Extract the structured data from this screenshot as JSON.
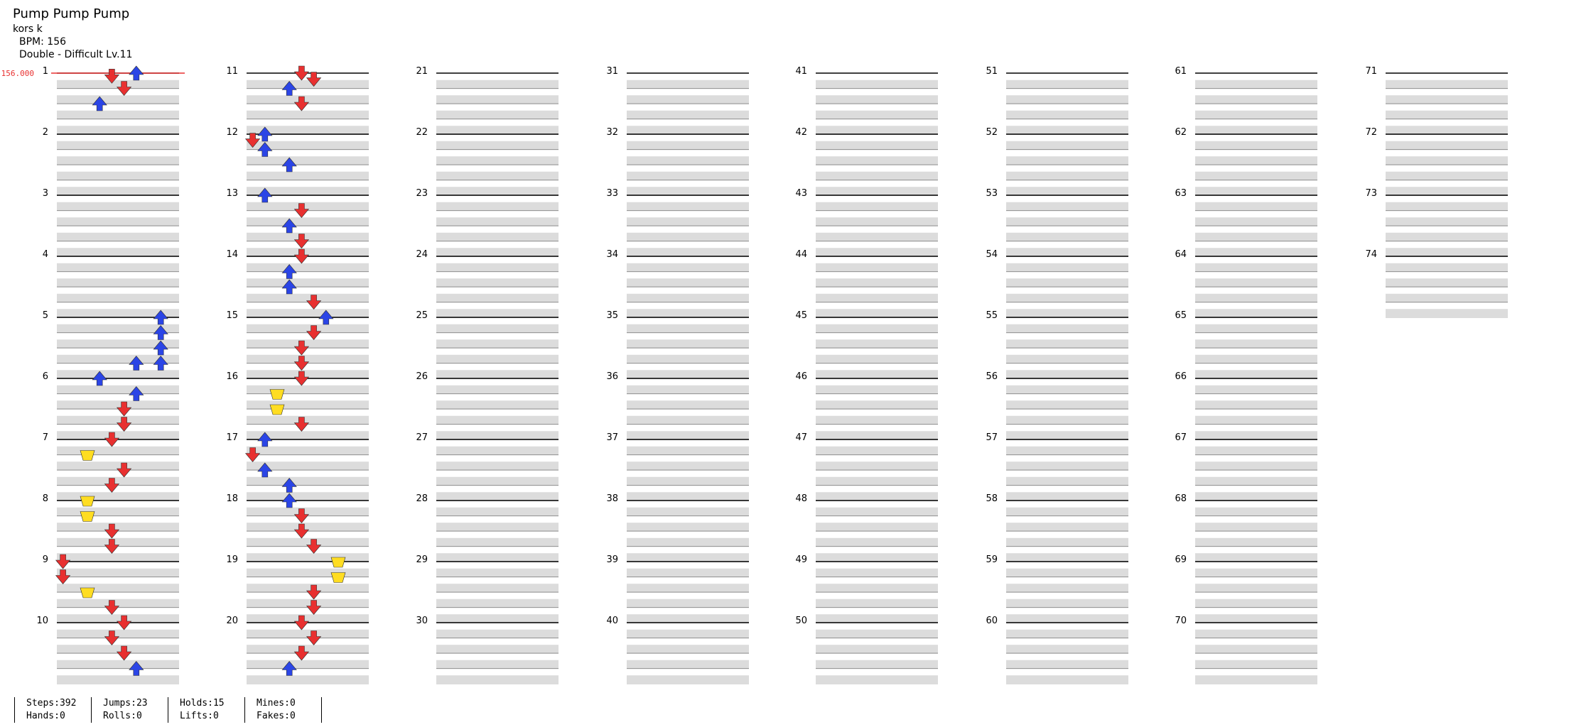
{
  "header": {
    "title": "Pump Pump Pump",
    "artist": "kors k",
    "bpm": "BPM: 156",
    "difficulty": "Double - Difficult Lv.11"
  },
  "bpm_marker": "156.000",
  "chart_data": {
    "type": "table",
    "measures_shown": 74,
    "measures_per_column": 10,
    "lanes": 10,
    "lane_order": [
      "down-left",
      "up-left",
      "center",
      "up-right",
      "down-right",
      "down-left",
      "up-left",
      "center",
      "up-right",
      "down-right"
    ],
    "colors": {
      "down-left": "#e83030",
      "up-left": "#e83030",
      "center": "#ffdd22",
      "up-right": "#e83030",
      "down-right": "#e83030",
      "blue": "#2b45e6",
      "hold": "#66dd66",
      "mine": "#aa33ff"
    },
    "measure_labels": [
      "1",
      "2",
      "3",
      "4",
      "5",
      "6",
      "7",
      "8",
      "9",
      "10",
      "11",
      "12",
      "13",
      "14",
      "15",
      "16",
      "17",
      "18",
      "19",
      "20",
      "21",
      "22",
      "23",
      "24",
      "25",
      "26",
      "27",
      "28",
      "29",
      "30",
      "31",
      "32",
      "33",
      "34",
      "35",
      "36",
      "37",
      "38",
      "39",
      "40",
      "41",
      "42",
      "43",
      "44",
      "45",
      "46",
      "47",
      "48",
      "49",
      "50",
      "51",
      "52",
      "53",
      "54",
      "55",
      "56",
      "57",
      "58",
      "59",
      "60",
      "61",
      "62",
      "63",
      "64",
      "65",
      "66",
      "67",
      "68",
      "69",
      "70",
      "71",
      "72",
      "73",
      "74"
    ],
    "notes": [
      [
        1,
        0.0,
        6
      ],
      [
        1,
        0.05,
        4
      ],
      [
        1,
        0.25,
        5
      ],
      [
        1,
        0.5,
        3
      ],
      [
        5,
        0.0,
        8
      ],
      [
        5,
        0.25,
        8
      ],
      [
        5,
        0.5,
        8
      ],
      [
        5,
        0.75,
        6
      ],
      [
        5,
        0.75,
        8
      ],
      [
        6,
        0.0,
        3
      ],
      [
        6,
        0.25,
        6
      ],
      [
        6,
        0.5,
        5
      ],
      [
        6,
        0.75,
        5
      ],
      [
        7,
        0.0,
        4
      ],
      [
        7,
        0.25,
        2
      ],
      [
        7,
        0.5,
        5
      ],
      [
        7,
        0.75,
        4
      ],
      [
        8,
        0.0,
        2
      ],
      [
        8,
        0.25,
        2
      ],
      [
        8,
        0.5,
        4
      ],
      [
        8,
        0.75,
        4
      ],
      [
        9,
        0.0,
        0
      ],
      [
        9,
        0.25,
        0
      ],
      [
        9,
        0.5,
        2
      ],
      [
        9,
        0.75,
        4
      ],
      [
        10,
        0.0,
        5
      ],
      [
        10,
        0.25,
        4
      ],
      [
        10,
        0.5,
        5
      ],
      [
        10,
        0.75,
        6
      ],
      [
        11,
        0.0,
        4
      ],
      [
        11,
        0.1,
        5
      ],
      [
        11,
        0.25,
        3
      ],
      [
        11,
        0.5,
        4
      ],
      [
        12,
        0.0,
        1
      ],
      [
        12,
        0.1,
        0
      ],
      [
        12,
        0.25,
        1
      ],
      [
        12,
        0.5,
        3
      ],
      [
        13,
        0.0,
        1
      ],
      [
        13,
        0.25,
        4
      ],
      [
        13,
        0.5,
        3
      ],
      [
        13,
        0.75,
        4
      ],
      [
        14,
        0.0,
        4
      ],
      [
        14,
        0.25,
        3
      ],
      [
        14,
        0.5,
        3
      ],
      [
        14,
        0.75,
        5
      ],
      [
        15,
        0.0,
        6
      ],
      [
        15,
        0.25,
        5
      ],
      [
        15,
        0.5,
        4
      ],
      [
        15,
        0.75,
        4
      ],
      [
        16,
        0.0,
        4
      ],
      [
        16,
        0.25,
        2
      ],
      [
        16,
        0.5,
        2
      ],
      [
        16,
        0.75,
        4
      ],
      [
        17,
        0.0,
        1
      ],
      [
        17,
        0.25,
        0
      ],
      [
        17,
        0.5,
        1
      ],
      [
        17,
        0.75,
        3
      ],
      [
        18,
        0.0,
        3
      ],
      [
        18,
        0.25,
        4
      ],
      [
        18,
        0.5,
        4
      ],
      [
        18,
        0.75,
        5
      ],
      [
        19,
        0.0,
        7
      ],
      [
        19,
        0.25,
        7
      ],
      [
        19,
        0.5,
        5
      ],
      [
        19,
        0.75,
        5
      ],
      [
        20,
        0.0,
        4
      ],
      [
        20,
        0.25,
        5
      ],
      [
        20,
        0.5,
        4
      ],
      [
        20,
        0.75,
        3
      ]
    ],
    "stats": {
      "steps": "Steps:392",
      "jumps": "Jumps:23",
      "holds": "Holds:15",
      "mines": "Mines:0",
      "hands": "Hands:0",
      "rolls": "Rolls:0",
      "lifts": "Lifts:0",
      "fakes": "Fakes:0"
    }
  }
}
